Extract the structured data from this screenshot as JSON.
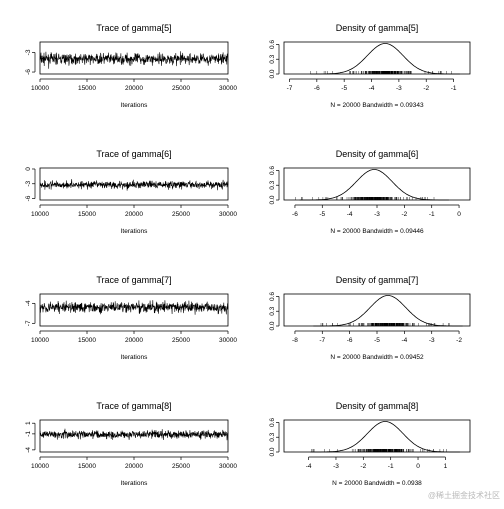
{
  "chart_data": [
    {
      "type": "line",
      "title": "Trace of gamma[5]",
      "xlabel": "Iterations",
      "xlim": [
        10000,
        30000
      ],
      "xticks": [
        "10000",
        "15000",
        "20000",
        "25000",
        "30000"
      ],
      "ylim": [
        -6.3,
        -1.4
      ],
      "yticks": [
        "-3",
        "-6"
      ],
      "series": [
        {
          "center": -4.0,
          "spread": 1.4
        }
      ]
    },
    {
      "type": "line",
      "title": "Density of gamma[5]",
      "stats": "N = 20000   Bandwidth = 0.09343",
      "xlim": [
        -7.2,
        -0.4
      ],
      "xticks": [
        "-7",
        "-6",
        "-5",
        "-4",
        "-3",
        "-2",
        "-1"
      ],
      "ylim": [
        0,
        0.65
      ],
      "yticks": [
        "0.0",
        "0.3",
        "0.6"
      ],
      "series": [
        {
          "mean": -3.5,
          "sd": 0.65,
          "peak": 0.62,
          "rug": [
            -6.3,
            -0.9
          ]
        }
      ]
    },
    {
      "type": "line",
      "title": "Trace of gamma[6]",
      "xlabel": "Iterations",
      "xlim": [
        10000,
        30000
      ],
      "xticks": [
        "10000",
        "15000",
        "20000",
        "25000",
        "30000"
      ],
      "ylim": [
        -6.3,
        0.2
      ],
      "yticks": [
        "0",
        "-3",
        "-6"
      ],
      "series": [
        {
          "center": -3.2,
          "spread": 1.3
        }
      ]
    },
    {
      "type": "line",
      "title": "Density of gamma[6]",
      "stats": "N = 20000   Bandwidth = 0.09446",
      "xlim": [
        -6.4,
        0.4
      ],
      "xticks": [
        "-6",
        "-5",
        "-4",
        "-3",
        "-2",
        "-1",
        "0"
      ],
      "ylim": [
        0,
        0.65
      ],
      "yticks": [
        "0.0",
        "0.3",
        "0.6"
      ],
      "series": [
        {
          "mean": -3.1,
          "sd": 0.65,
          "peak": 0.62,
          "rug": [
            -6.0,
            -0.9
          ]
        }
      ]
    },
    {
      "type": "line",
      "title": "Trace of gamma[7]",
      "xlabel": "Iterations",
      "xlim": [
        10000,
        30000
      ],
      "xticks": [
        "10000",
        "15000",
        "20000",
        "25000",
        "30000"
      ],
      "ylim": [
        -7.4,
        -2.6
      ],
      "yticks": [
        "-4",
        "-7"
      ],
      "series": [
        {
          "center": -4.6,
          "spread": 1.3
        }
      ]
    },
    {
      "type": "line",
      "title": "Density of gamma[7]",
      "stats": "N = 20000   Bandwidth = 0.09452",
      "xlim": [
        -8.4,
        -1.6
      ],
      "xticks": [
        "-8",
        "-7",
        "-6",
        "-5",
        "-4",
        "-3",
        "-2"
      ],
      "ylim": [
        0,
        0.65
      ],
      "yticks": [
        "0.0",
        "0.3",
        "0.6"
      ],
      "series": [
        {
          "mean": -4.6,
          "sd": 0.65,
          "peak": 0.62,
          "rug": [
            -7.5,
            -2.3
          ]
        }
      ]
    },
    {
      "type": "line",
      "title": "Trace of gamma[8]",
      "xlabel": "Iterations",
      "xlim": [
        10000,
        30000
      ],
      "xticks": [
        "10000",
        "15000",
        "20000",
        "25000",
        "30000"
      ],
      "ylim": [
        -4.4,
        1.6
      ],
      "yticks": [
        "1",
        "-1",
        "-4"
      ],
      "series": [
        {
          "center": -1.1,
          "spread": 1.3
        }
      ]
    },
    {
      "type": "line",
      "title": "Density of gamma[8]",
      "stats": "N = 20000   Bandwidth = 0.0938",
      "xlim": [
        -4.9,
        1.9
      ],
      "xticks": [
        "-4",
        "-3",
        "-2",
        "-1",
        "0",
        "1"
      ],
      "ylim": [
        0,
        0.65
      ],
      "yticks": [
        "0.0",
        "0.3",
        "0.6"
      ],
      "series": [
        {
          "mean": -1.2,
          "sd": 0.65,
          "peak": 0.62,
          "rug": [
            -4.1,
            1.2
          ]
        }
      ]
    }
  ],
  "watermark": "@稀土掘金技术社区"
}
